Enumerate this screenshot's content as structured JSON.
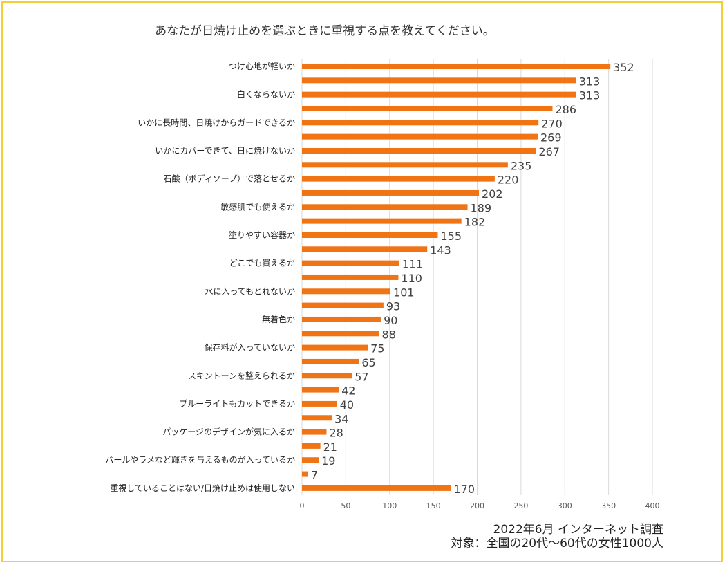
{
  "chart_data": {
    "type": "bar",
    "orientation": "horizontal",
    "title": "あなたが日焼け止めを選ぶときに重視する点を教えてください。",
    "categories": [
      "つけ心地が軽いか",
      "",
      "白くならないか",
      "",
      "いかに長時間、日焼けからガードできるか",
      "",
      "いかにカバーできて、日に焼けないか",
      "",
      "石鹸（ボディソープ）で落とせるか",
      "",
      "敏感肌でも使えるか",
      "",
      "塗りやすい容器か",
      "",
      "どこでも買えるか",
      "",
      "水に入ってもとれないか",
      "",
      "無着色か",
      "",
      "保存料が入っていないか",
      "",
      "スキントーンを整えられるか",
      "",
      "ブルーライトもカットできるか",
      "",
      "パッケージのデザインが気に入るか",
      "",
      "パールやラメなど輝きを与えるものが入っているか",
      "",
      "重視していることはない/日焼け止めは使用しない"
    ],
    "values": [
      352,
      313,
      313,
      286,
      270,
      269,
      267,
      235,
      220,
      202,
      189,
      182,
      155,
      143,
      111,
      110,
      101,
      93,
      90,
      88,
      75,
      65,
      57,
      42,
      40,
      34,
      28,
      21,
      19,
      7,
      170
    ],
    "xlim": [
      0,
      400
    ],
    "xticks": [
      0,
      50,
      100,
      150,
      200,
      250,
      300,
      350,
      400
    ],
    "grid": true,
    "bar_color": "#f07314",
    "grid_color": "#d9d9d9",
    "tick_color": "#595959",
    "label_color": "#222222",
    "value_color": "#404040",
    "frame_color": "#f2cf38"
  },
  "notes": {
    "survey_date": "2022年6月  インターネット調査",
    "target": "対象：全国の20代～60代の女性1000人"
  }
}
